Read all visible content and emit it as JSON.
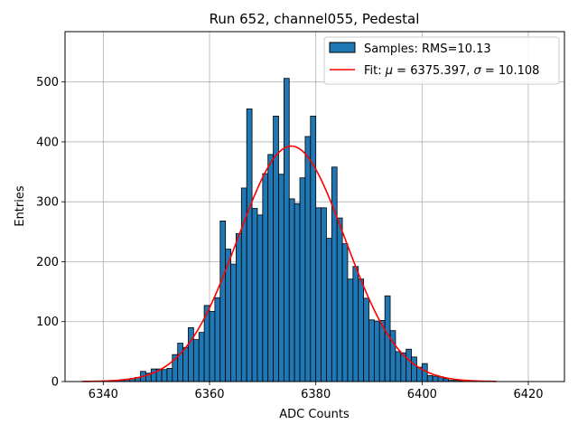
{
  "chart_data": {
    "type": "bar",
    "title": "Run 652, channel055, Pedestal",
    "xlabel": "ADC Counts",
    "ylabel": "Entries",
    "xlim": [
      6332.8,
      6426.8
    ],
    "ylim": [
      0,
      584
    ],
    "xticks": [
      6340,
      6360,
      6380,
      6400,
      6420
    ],
    "yticks": [
      0,
      100,
      200,
      300,
      400,
      500
    ],
    "grid": true,
    "legend_position": "top-right",
    "bin_width": 1,
    "bin_starts": [
      6336,
      6337,
      6338,
      6339,
      6340,
      6341,
      6342,
      6343,
      6344,
      6345,
      6346,
      6347,
      6348,
      6349,
      6350,
      6351,
      6352,
      6353,
      6354,
      6355,
      6356,
      6357,
      6358,
      6359,
      6360,
      6361,
      6362,
      6363,
      6364,
      6365,
      6366,
      6367,
      6368,
      6369,
      6370,
      6371,
      6372,
      6373,
      6374,
      6375,
      6376,
      6377,
      6378,
      6379,
      6380,
      6381,
      6382,
      6383,
      6384,
      6385,
      6386,
      6387,
      6388,
      6389,
      6390,
      6391,
      6392,
      6393,
      6394,
      6395,
      6396,
      6397,
      6398,
      6399,
      6400,
      6401,
      6402,
      6403,
      6404,
      6405,
      6406,
      6407,
      6408,
      6409,
      6410,
      6411,
      6412,
      6413
    ],
    "counts": [
      0,
      0,
      0,
      0,
      0,
      0,
      0,
      2,
      4,
      5,
      7,
      17,
      14,
      21,
      21,
      20,
      22,
      45,
      64,
      57,
      90,
      70,
      82,
      127,
      117,
      140,
      268,
      221,
      196,
      247,
      323,
      455,
      289,
      278,
      347,
      379,
      443,
      346,
      506,
      305,
      297,
      340,
      409,
      443,
      290,
      290,
      239,
      358,
      273,
      230,
      171,
      192,
      171,
      139,
      103,
      101,
      102,
      143,
      85,
      50,
      48,
      54,
      41,
      24,
      30,
      10,
      9,
      8,
      5,
      2,
      2,
      1,
      0,
      0,
      0,
      0,
      0,
      0
    ],
    "fit": {
      "type": "gaussian",
      "mu": 6375.397,
      "sigma": 10.108,
      "amplitude": 393,
      "x_range": [
        6336,
        6414
      ]
    },
    "series": [
      {
        "name": "Samples: RMS=10.13",
        "type": "histogram",
        "color": "#1f77b4",
        "edge_color": "#000000"
      },
      {
        "name": "Fit: μ = 6375.397, σ = 10.108",
        "type": "line",
        "color": "#ff0000"
      }
    ]
  },
  "legend": {
    "samples_label": "Samples: RMS=10.13",
    "fit_prefix": "Fit: ",
    "fit_mu_symbol": "μ",
    "fit_mu_text": " = 6375.397, ",
    "fit_sigma_symbol": "σ",
    "fit_sigma_text": " = 10.108"
  }
}
